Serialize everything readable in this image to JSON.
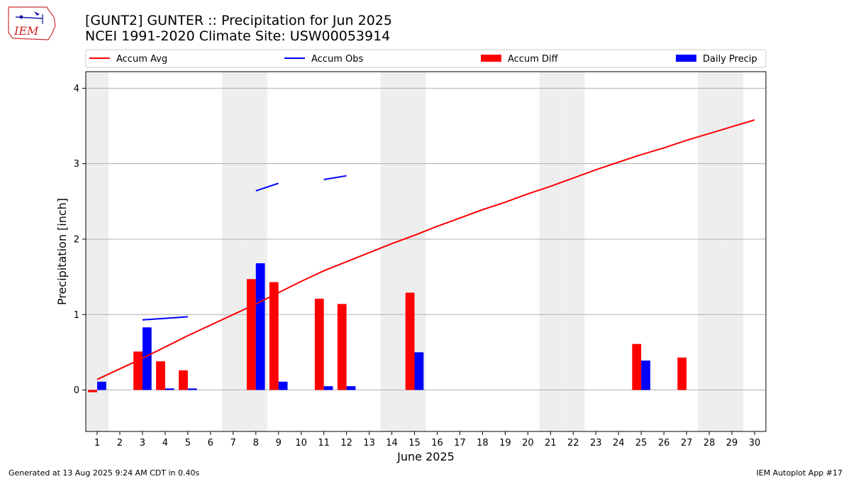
{
  "header": {
    "title_line1": "[GUNT2] GUNTER :: Precipitation for Jun 2025",
    "title_line2": "NCEI 1991-2020 Climate Site: USW00053914",
    "logo_text": "IEM"
  },
  "footer": {
    "generated": "Generated at 13 Aug 2025 9:24 AM CDT in 0.40s",
    "app": "IEM Autoplot App #17"
  },
  "colors": {
    "avg": "#ff0000",
    "obs": "#0000ff",
    "diff": "#ff0000",
    "daily": "#0000ff",
    "weekend": "#eeeeee",
    "grid": "#b0b0b0"
  },
  "chart_data": {
    "type": "bar",
    "xlabel": "June 2025",
    "ylabel": "Precipitation [inch]",
    "xlim": [
      0.5,
      30.5
    ],
    "ylim": [
      -0.55,
      4.22
    ],
    "yticks": [
      0,
      1,
      2,
      3,
      4
    ],
    "grid": "y",
    "legend_placement": "top",
    "legend": [
      {
        "label": "Accum Avg",
        "kind": "line",
        "color_key": "avg"
      },
      {
        "label": "Accum Obs",
        "kind": "line",
        "color_key": "obs"
      },
      {
        "label": "Accum Diff",
        "kind": "bar",
        "color_key": "diff"
      },
      {
        "label": "Daily Precip",
        "kind": "bar",
        "color_key": "daily"
      }
    ],
    "weekend_days": [
      1,
      7,
      8,
      14,
      15,
      21,
      22,
      28,
      29
    ],
    "days": [
      1,
      2,
      3,
      4,
      5,
      6,
      7,
      8,
      9,
      10,
      11,
      12,
      13,
      14,
      15,
      16,
      17,
      18,
      19,
      20,
      21,
      22,
      23,
      24,
      25,
      26,
      27,
      28,
      29,
      30
    ],
    "series": [
      {
        "name": "Accum Avg",
        "type": "line",
        "values": [
          0.14,
          0.28,
          0.42,
          0.57,
          0.72,
          0.86,
          1.0,
          1.14,
          1.29,
          1.44,
          1.58,
          1.7,
          1.82,
          1.94,
          2.05,
          2.17,
          2.28,
          2.39,
          2.49,
          2.6,
          2.7,
          2.81,
          2.92,
          3.02,
          3.12,
          3.21,
          3.31,
          3.4,
          3.49,
          3.58
        ]
      },
      {
        "name": "Accum Obs",
        "type": "line",
        "values": [
          null,
          null,
          0.93,
          0.95,
          0.97,
          null,
          null,
          2.64,
          2.74,
          null,
          2.79,
          2.84,
          null,
          null,
          null,
          null,
          null,
          null,
          null,
          null,
          null,
          null,
          null,
          null,
          null,
          null,
          null,
          null,
          null,
          null
        ]
      },
      {
        "name": "Accum Diff",
        "type": "bar",
        "values": [
          -0.03,
          0,
          0.51,
          0.38,
          0.26,
          0,
          0,
          1.47,
          1.43,
          0,
          1.21,
          1.14,
          0,
          0,
          1.29,
          0,
          0,
          0,
          0,
          0,
          0,
          0,
          0,
          0,
          0.61,
          0,
          0.43,
          0,
          0,
          0
        ]
      },
      {
        "name": "Daily Precip",
        "type": "bar",
        "values": [
          0.11,
          0,
          0.83,
          0.02,
          0.02,
          0,
          0,
          1.68,
          0.11,
          0,
          0.05,
          0.05,
          0,
          0,
          0.5,
          0,
          0,
          0,
          0,
          0,
          0,
          0,
          0,
          0,
          0.39,
          0,
          0,
          0,
          0,
          0
        ]
      }
    ]
  }
}
